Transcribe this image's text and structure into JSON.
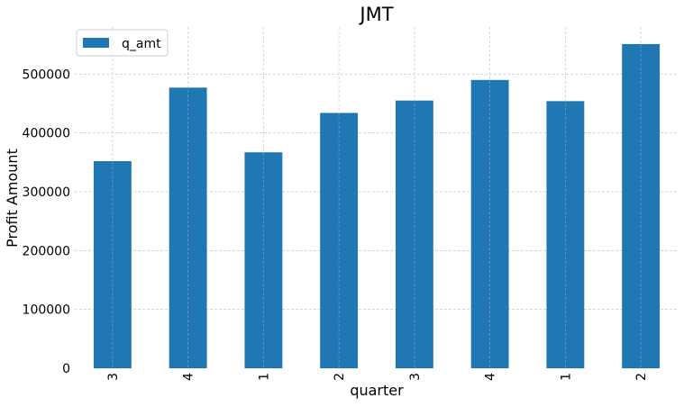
{
  "chart_data": {
    "type": "bar",
    "title": "JMT",
    "xlabel": "quarter",
    "ylabel": "Profit Amount",
    "categories": [
      "3",
      "4",
      "1",
      "2",
      "3",
      "4",
      "1",
      "2"
    ],
    "series": [
      {
        "name": "q_amt",
        "values": [
          352000,
          477000,
          367000,
          434000,
          455000,
          490000,
          454000,
          551000
        ]
      }
    ],
    "ylim": [
      0,
      580000
    ],
    "yticks": [
      0,
      100000,
      200000,
      300000,
      400000,
      500000
    ],
    "ytick_labels": [
      "0",
      "100000",
      "200000",
      "300000",
      "400000",
      "500000"
    ],
    "grid": true,
    "legend_position": "top-left",
    "xtick_rotation": 90,
    "bar_color": "#1f77b4",
    "grid_color": "#b0b0b0"
  }
}
